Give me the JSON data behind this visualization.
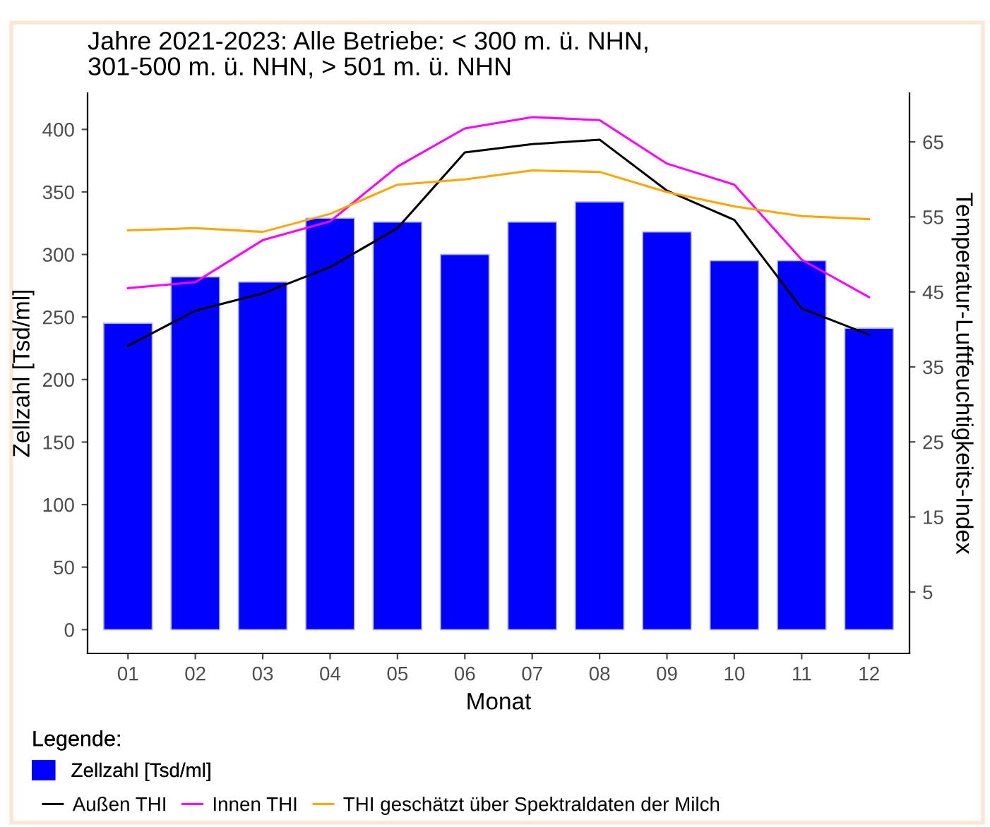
{
  "chart_data": {
    "type": "bar",
    "title": "Jahre 2021-2023: Alle Betriebe: < 300 m. ü. NHN,\n301-500 m. ü. NHN, > 501 m. ü. NHN",
    "xlabel": "Monat",
    "ylabel": "Zellzahl [Tsd/ml]",
    "y2label": "Temperatur-Luftfeuchtigkeits-Index",
    "legend_title": "Legende:",
    "categories": [
      "01",
      "02",
      "03",
      "04",
      "05",
      "06",
      "07",
      "08",
      "09",
      "10",
      "11",
      "12"
    ],
    "series": [
      {
        "name": "Zellzahl [Tsd/ml]",
        "color": "#0000ff",
        "values": [
          245,
          282,
          278,
          329,
          326,
          300,
          326,
          342,
          318,
          295,
          295,
          241
        ]
      },
      {
        "name": "Außen THI",
        "type": "line",
        "axis": "y2",
        "color": "#000000",
        "values": [
          37.8,
          42.5,
          44.8,
          48.3,
          53.5,
          63.6,
          64.7,
          65.3,
          58.5,
          54.6,
          42.8,
          39.3
        ]
      },
      {
        "name": "Innen THI",
        "type": "line",
        "axis": "y2",
        "color": "#ff00ff",
        "values": [
          45.5,
          46.3,
          51.9,
          54.4,
          61.7,
          66.8,
          68.3,
          67.9,
          62.1,
          59.3,
          49.3,
          44.3
        ]
      },
      {
        "name": "THI geschätzt über Spektraldaten der Milch",
        "type": "line",
        "axis": "y2",
        "color": "#ffa500",
        "values": [
          53.2,
          53.5,
          53.0,
          55.4,
          59.3,
          60.0,
          61.2,
          61.0,
          58.3,
          56.4,
          55.1,
          54.7
        ]
      }
    ],
    "ylim": [
      -19,
      429
    ],
    "yticks": [
      0,
      50,
      100,
      150,
      200,
      250,
      300,
      350,
      400
    ],
    "y2lim": [
      -3.2,
      71.5
    ],
    "y2ticks": [
      5,
      15,
      25,
      35,
      45,
      55,
      65
    ],
    "grid": false,
    "legend": "bottom left"
  }
}
